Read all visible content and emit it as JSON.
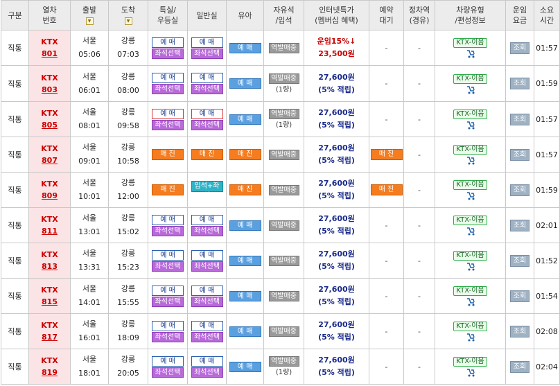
{
  "headers": {
    "type": "구분",
    "train_no_1": "열차",
    "train_no_2": "번호",
    "depart": "출발",
    "arrive": "도착",
    "special_1": "특실/",
    "special_2": "우등실",
    "general": "일반실",
    "child": "유아",
    "free_1": "자유석",
    "free_2": "/입석",
    "online_1": "인터넷특가",
    "online_2": "(멤버십 혜택)",
    "reserve_1": "예약",
    "reserve_2": "대기",
    "stop_1": "정차역",
    "stop_2": "(경유)",
    "vehicle_1": "차량유형",
    "vehicle_2": "/편성정보",
    "fare_1": "운임",
    "fare_2": "요금",
    "duration_1": "소요",
    "duration_2": "시간",
    "sort_glyph": "▼"
  },
  "labels": {
    "reserve": "예 매",
    "seat_select": "좌석선택",
    "sold_out": "매 진",
    "standing_plus_seat": "입석+좌석",
    "station_sale": "역발매중",
    "one_car": "(1량)",
    "mileage": "(5% 적립)",
    "dash": "-",
    "vehicle": "KTX-이음",
    "fare_query": "조회"
  },
  "rows": [
    {
      "type": "직통",
      "ktx": "KTX",
      "no": "801",
      "from": "서울",
      "dep": "05:06",
      "to": "강릉",
      "arr": "07:03",
      "special": "reserve_seat",
      "general": "reserve_seat",
      "child": "reserve",
      "free_car": false,
      "fare_a": "운임15%↓",
      "fare_b": "23,500원",
      "fare_style": "discount",
      "reserve_wait": "-",
      "duration": "01:57"
    },
    {
      "type": "직통",
      "ktx": "KTX",
      "no": "803",
      "from": "서울",
      "dep": "06:01",
      "to": "강릉",
      "arr": "08:00",
      "special": "reserve_seat",
      "general": "reserve_seat",
      "child": "reserve",
      "free_car": true,
      "fare_a": "27,600원",
      "fare_b": "(5% 적립)",
      "fare_style": "normal",
      "reserve_wait": "-",
      "duration": "01:59"
    },
    {
      "type": "직통",
      "ktx": "KTX",
      "no": "805",
      "from": "서울",
      "dep": "08:01",
      "to": "강릉",
      "arr": "09:58",
      "special": "reserve_seat_red",
      "general": "reserve_seat_red",
      "child": "reserve",
      "free_car": true,
      "fare_a": "27,600원",
      "fare_b": "(5% 적립)",
      "fare_style": "normal",
      "reserve_wait": "-",
      "duration": "01:57"
    },
    {
      "type": "직통",
      "ktx": "KTX",
      "no": "807",
      "from": "서울",
      "dep": "09:01",
      "to": "강릉",
      "arr": "10:58",
      "special": "sold",
      "general": "sold",
      "child": "sold",
      "free_car": false,
      "fare_a": "27,600원",
      "fare_b": "(5% 적립)",
      "fare_style": "normal",
      "reserve_wait": "sold",
      "duration": "01:57"
    },
    {
      "type": "직통",
      "ktx": "KTX",
      "no": "809",
      "from": "서울",
      "dep": "10:01",
      "to": "강릉",
      "arr": "12:00",
      "special": "sold",
      "general": "teal",
      "child": "sold",
      "free_car": false,
      "fare_a": "27,600원",
      "fare_b": "(5% 적립)",
      "fare_style": "normal",
      "reserve_wait": "sold",
      "duration": "01:59"
    },
    {
      "type": "직통",
      "ktx": "KTX",
      "no": "811",
      "from": "서울",
      "dep": "13:01",
      "to": "강릉",
      "arr": "15:02",
      "special": "reserve_seat",
      "general": "reserve_seat",
      "child": "reserve",
      "free_car": false,
      "fare_a": "27,600원",
      "fare_b": "(5% 적립)",
      "fare_style": "normal",
      "reserve_wait": "-",
      "duration": "02:01"
    },
    {
      "type": "직통",
      "ktx": "KTX",
      "no": "813",
      "from": "서울",
      "dep": "13:31",
      "to": "강릉",
      "arr": "15:23",
      "special": "reserve_seat",
      "general": "reserve_seat",
      "child": "reserve",
      "free_car": false,
      "fare_a": "27,600원",
      "fare_b": "(5% 적립)",
      "fare_style": "normal",
      "reserve_wait": "-",
      "duration": "01:52"
    },
    {
      "type": "직통",
      "ktx": "KTX",
      "no": "815",
      "from": "서울",
      "dep": "14:01",
      "to": "강릉",
      "arr": "15:55",
      "special": "reserve_seat",
      "general": "reserve_seat",
      "child": "reserve",
      "free_car": false,
      "fare_a": "27,600원",
      "fare_b": "(5% 적립)",
      "fare_style": "normal",
      "reserve_wait": "-",
      "duration": "01:54"
    },
    {
      "type": "직통",
      "ktx": "KTX",
      "no": "817",
      "from": "서울",
      "dep": "16:01",
      "to": "강릉",
      "arr": "18:09",
      "special": "reserve_seat",
      "general": "reserve_seat",
      "child": "reserve",
      "free_car": false,
      "fare_a": "27,600원",
      "fare_b": "(5% 적립)",
      "fare_style": "normal",
      "reserve_wait": "-",
      "duration": "02:08"
    },
    {
      "type": "직통",
      "ktx": "KTX",
      "no": "819",
      "from": "서울",
      "dep": "18:01",
      "to": "강릉",
      "arr": "20:05",
      "special": "reserve_seat",
      "general": "reserve_seat",
      "child": "reserve",
      "free_car": true,
      "fare_a": "27,600원",
      "fare_b": "(5% 적립)",
      "fare_style": "normal",
      "reserve_wait": "-",
      "duration": "02:04"
    }
  ]
}
